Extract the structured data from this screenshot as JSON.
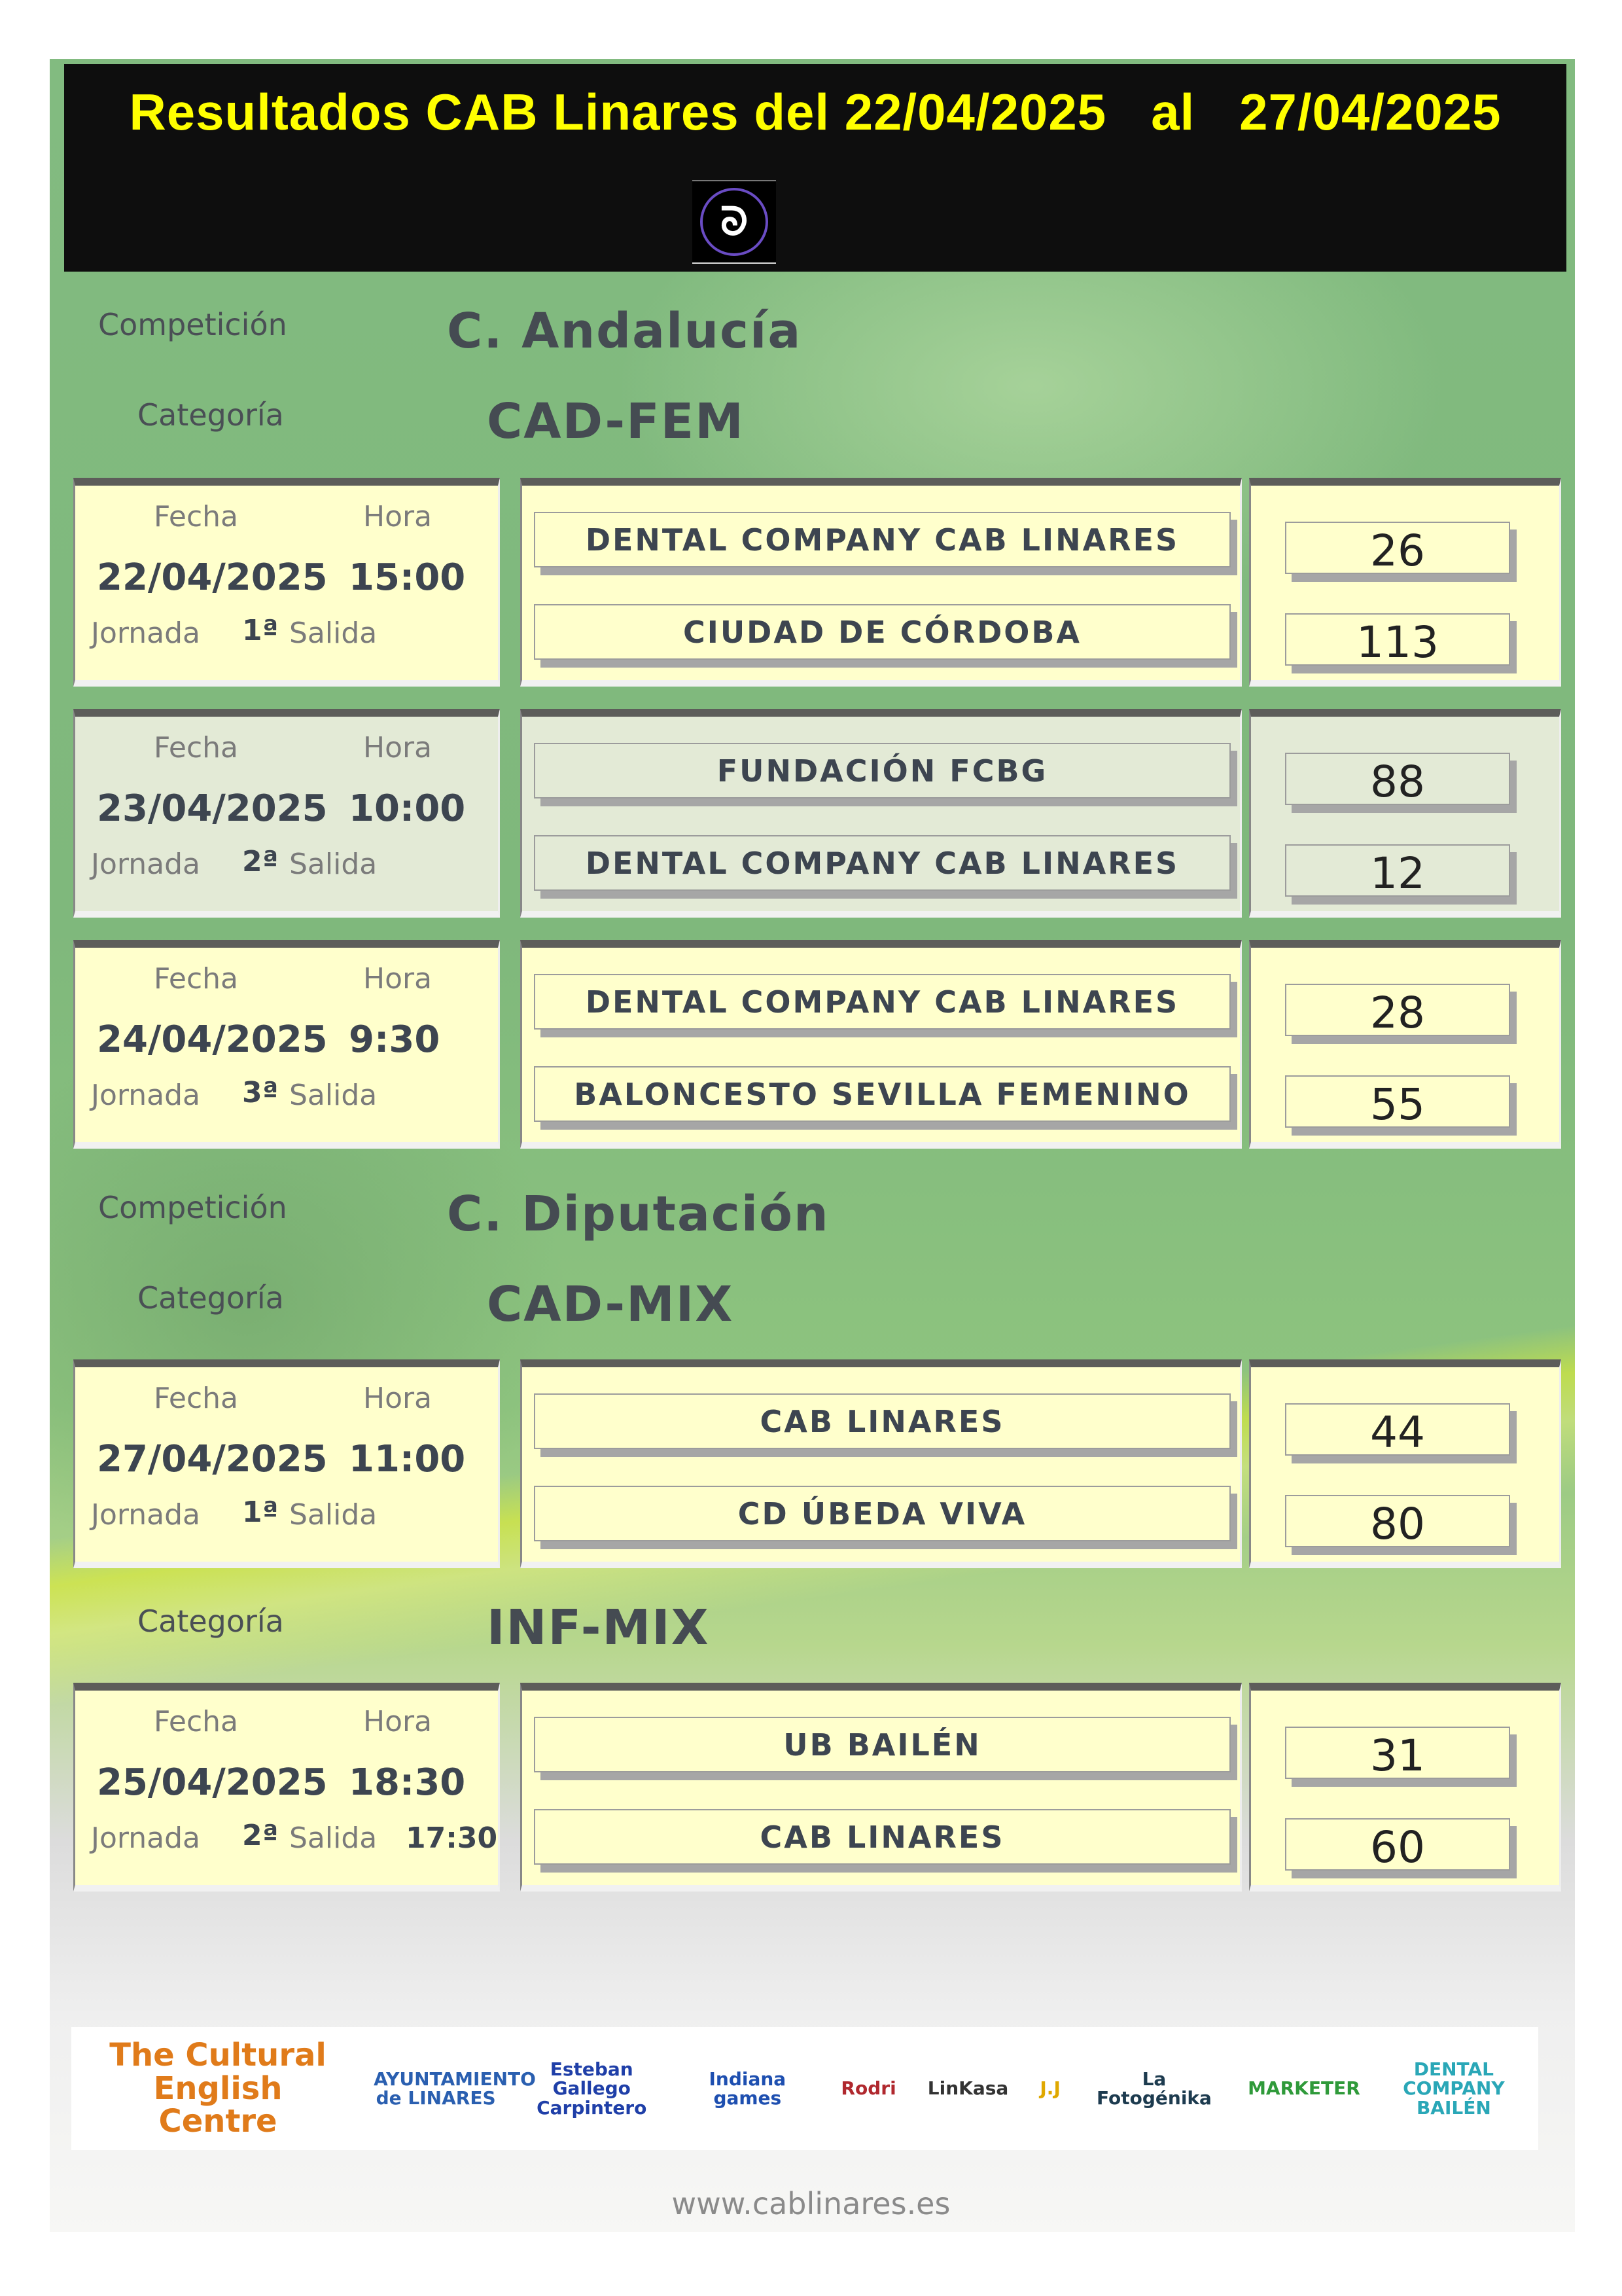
{
  "header": {
    "title": "Resultados CAB Linares del 22/04/2025   al   27/04/2025"
  },
  "labels": {
    "competicion": "Competición",
    "categoria": "Categoría",
    "fecha": "Fecha",
    "hora": "Hora",
    "jornada": "Jornada",
    "salida": "Salida"
  },
  "competitions": [
    {
      "name": "C. Andalucía",
      "categories": [
        {
          "name": "CAD-FEM",
          "matches": [
            {
              "date": "22/04/2025",
              "time": "15:00",
              "jornada": "1ª",
              "salida": "",
              "home": "DENTAL COMPANY CAB LINARES",
              "away": "CIUDAD DE CÓRDOBA",
              "home_score": "26",
              "away_score": "113"
            },
            {
              "date": "23/04/2025",
              "time": "10:00",
              "jornada": "2ª",
              "salida": "",
              "home": "FUNDACIÓN FCBG",
              "away": "DENTAL COMPANY CAB LINARES",
              "home_score": "88",
              "away_score": "12"
            },
            {
              "date": "24/04/2025",
              "time": "9:30",
              "jornada": "3ª",
              "salida": "",
              "home": "DENTAL COMPANY CAB LINARES",
              "away": "BALONCESTO SEVILLA FEMENINO",
              "home_score": "28",
              "away_score": "55"
            }
          ]
        }
      ]
    },
    {
      "name": "C. Diputación",
      "categories": [
        {
          "name": "CAD-MIX",
          "matches": [
            {
              "date": "27/04/2025",
              "time": "11:00",
              "jornada": "1ª",
              "salida": "",
              "home": "CAB LINARES",
              "away": "CD ÚBEDA VIVA",
              "home_score": "44",
              "away_score": "80"
            }
          ]
        },
        {
          "name": "INF-MIX",
          "matches": [
            {
              "date": "25/04/2025",
              "time": "18:30",
              "jornada": "2ª",
              "salida": "17:30",
              "home": "UB BAILÉN",
              "away": "CAB LINARES",
              "home_score": "31",
              "away_score": "60"
            }
          ]
        }
      ]
    }
  ],
  "sponsors": [
    {
      "name": "The Cultural English Centre",
      "color": "#e07b1a"
    },
    {
      "name": "AYUNTAMIENTO de LINARES",
      "color": "#2a5fb0"
    },
    {
      "name": "Esteban Gallego Carpintero",
      "color": "#1f3fa8"
    },
    {
      "name": "Indiana games",
      "color": "#1e4fb0"
    },
    {
      "name": "Rodri",
      "color": "#b0282e"
    },
    {
      "name": "LinKasa",
      "color": "#333333"
    },
    {
      "name": "J.J",
      "color": "#e0a800"
    },
    {
      "name": "La Fotogénika",
      "color": "#1d3b4f"
    },
    {
      "name": "MARKETER",
      "color": "#2f9a3a"
    },
    {
      "name": "DENTAL COMPANY BAILÉN",
      "color": "#2aa7b7"
    }
  ],
  "website": "www.cablinares.es"
}
